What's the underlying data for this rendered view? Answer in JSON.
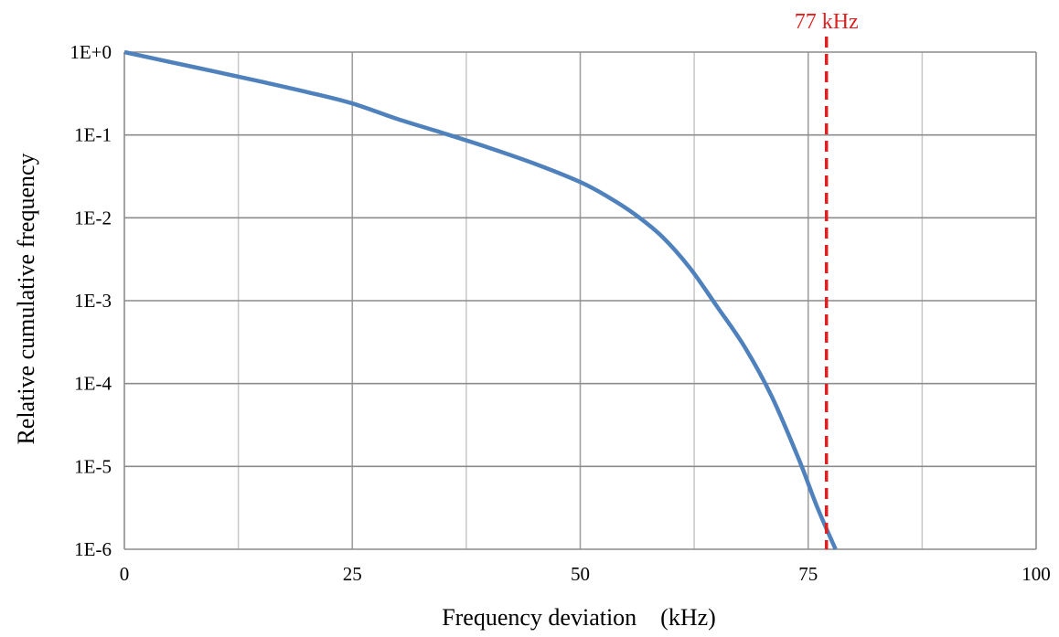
{
  "chart_data": {
    "type": "line",
    "xlabel": "Frequency deviation　(kHz)",
    "ylabel": "Relative cumulative frequency",
    "x_scale": "linear",
    "y_scale": "log",
    "xlim": [
      0,
      100
    ],
    "ylim": [
      1e-06,
      1
    ],
    "x_ticks": [
      {
        "value": 0,
        "label": "0"
      },
      {
        "value": 25,
        "label": "25"
      },
      {
        "value": 50,
        "label": "50"
      },
      {
        "value": 75,
        "label": "75"
      },
      {
        "value": 100,
        "label": "100"
      }
    ],
    "y_ticks": [
      {
        "value": 1,
        "label": "1E+0"
      },
      {
        "value": 0.1,
        "label": "1E-1"
      },
      {
        "value": 0.01,
        "label": "1E-2"
      },
      {
        "value": 0.001,
        "label": "1E-3"
      },
      {
        "value": 0.0001,
        "label": "1E-4"
      },
      {
        "value": 1e-05,
        "label": "1E-5"
      },
      {
        "value": 1e-06,
        "label": "1E-6"
      }
    ],
    "x_minor_gridlines": [
      12.5,
      37.5,
      62.5,
      87.5
    ],
    "grid": true,
    "series": [
      {
        "color": "#4f81bd",
        "x": [
          0,
          5,
          10,
          15,
          20,
          25,
          30,
          35,
          40,
          45,
          50,
          53,
          56,
          59,
          62,
          65,
          68,
          71,
          74,
          76,
          78
        ],
        "y": [
          1.0,
          0.76,
          0.58,
          0.44,
          0.33,
          0.24,
          0.155,
          0.105,
          0.07,
          0.045,
          0.027,
          0.018,
          0.011,
          0.0059,
          0.0025,
          0.00085,
          0.00028,
          7e-05,
          1.2e-05,
          3.2e-06,
          1e-06
        ]
      }
    ],
    "annotations": [
      {
        "type": "vline",
        "x": 77,
        "label": "77 kHz",
        "color": "#e02020",
        "style": "dashed"
      }
    ]
  }
}
